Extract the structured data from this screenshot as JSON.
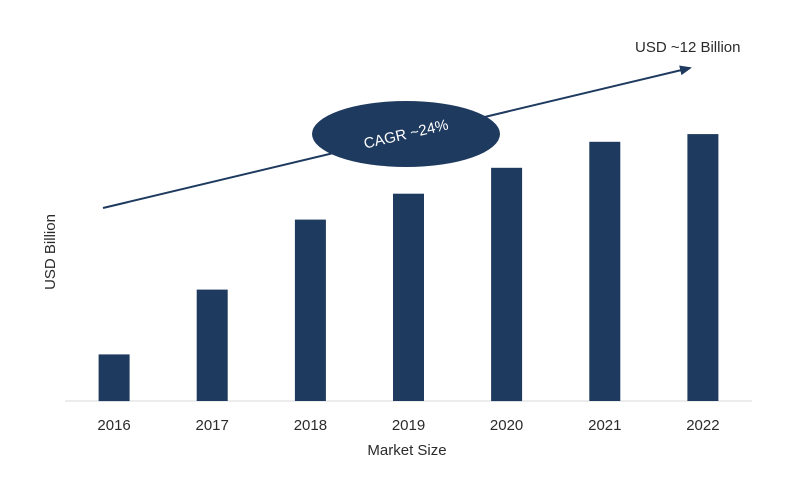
{
  "chart_data": {
    "type": "bar",
    "categories": [
      "2016",
      "2017",
      "2018",
      "2019",
      "2020",
      "2021",
      "2022"
    ],
    "values": [
      1.8,
      4.3,
      7.0,
      8.0,
      9.0,
      10.0,
      10.3
    ],
    "xlabel": "Market Size",
    "ylabel": "USD Billion",
    "ylim": [
      0,
      12
    ],
    "grid": false,
    "bar_color": "#1f3a5f",
    "annotations": {
      "cagr": "CAGR ~24%",
      "end_value": "USD ~12 Billion"
    }
  }
}
